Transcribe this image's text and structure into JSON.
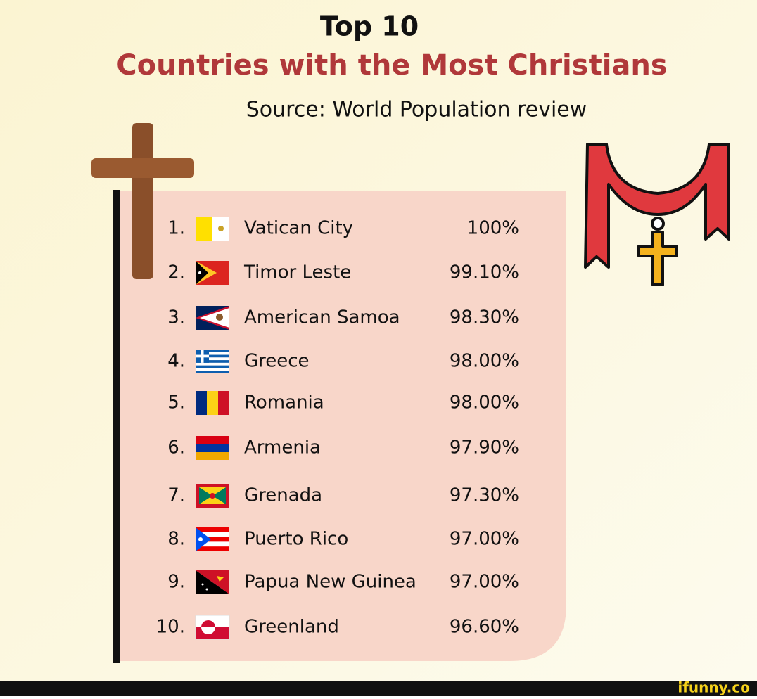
{
  "header": {
    "title": "Top 10",
    "subtitle": "Countries with the Most Christians",
    "source": "Source: World Population review"
  },
  "table": {
    "rows": [
      [
        "1.",
        "Vatican City",
        "100%"
      ],
      [
        "2.",
        "Timor Leste",
        "99.10%"
      ],
      [
        "3.",
        "American Samoa",
        "98.30%"
      ],
      [
        "4.",
        "Greece",
        "98.00%"
      ],
      [
        "5.",
        "Romania",
        "98.00%"
      ],
      [
        "6.",
        "Armenia",
        "97.90%"
      ],
      [
        "7.",
        "Grenada",
        "97.30%"
      ],
      [
        "8.",
        "Puerto Rico",
        "97.00%"
      ],
      [
        "9.",
        "Papua New Guinea",
        "97.00%"
      ],
      [
        "10.",
        "Greenland",
        "96.60%"
      ]
    ]
  },
  "footer": {
    "watermark": "ifunny.co"
  }
}
